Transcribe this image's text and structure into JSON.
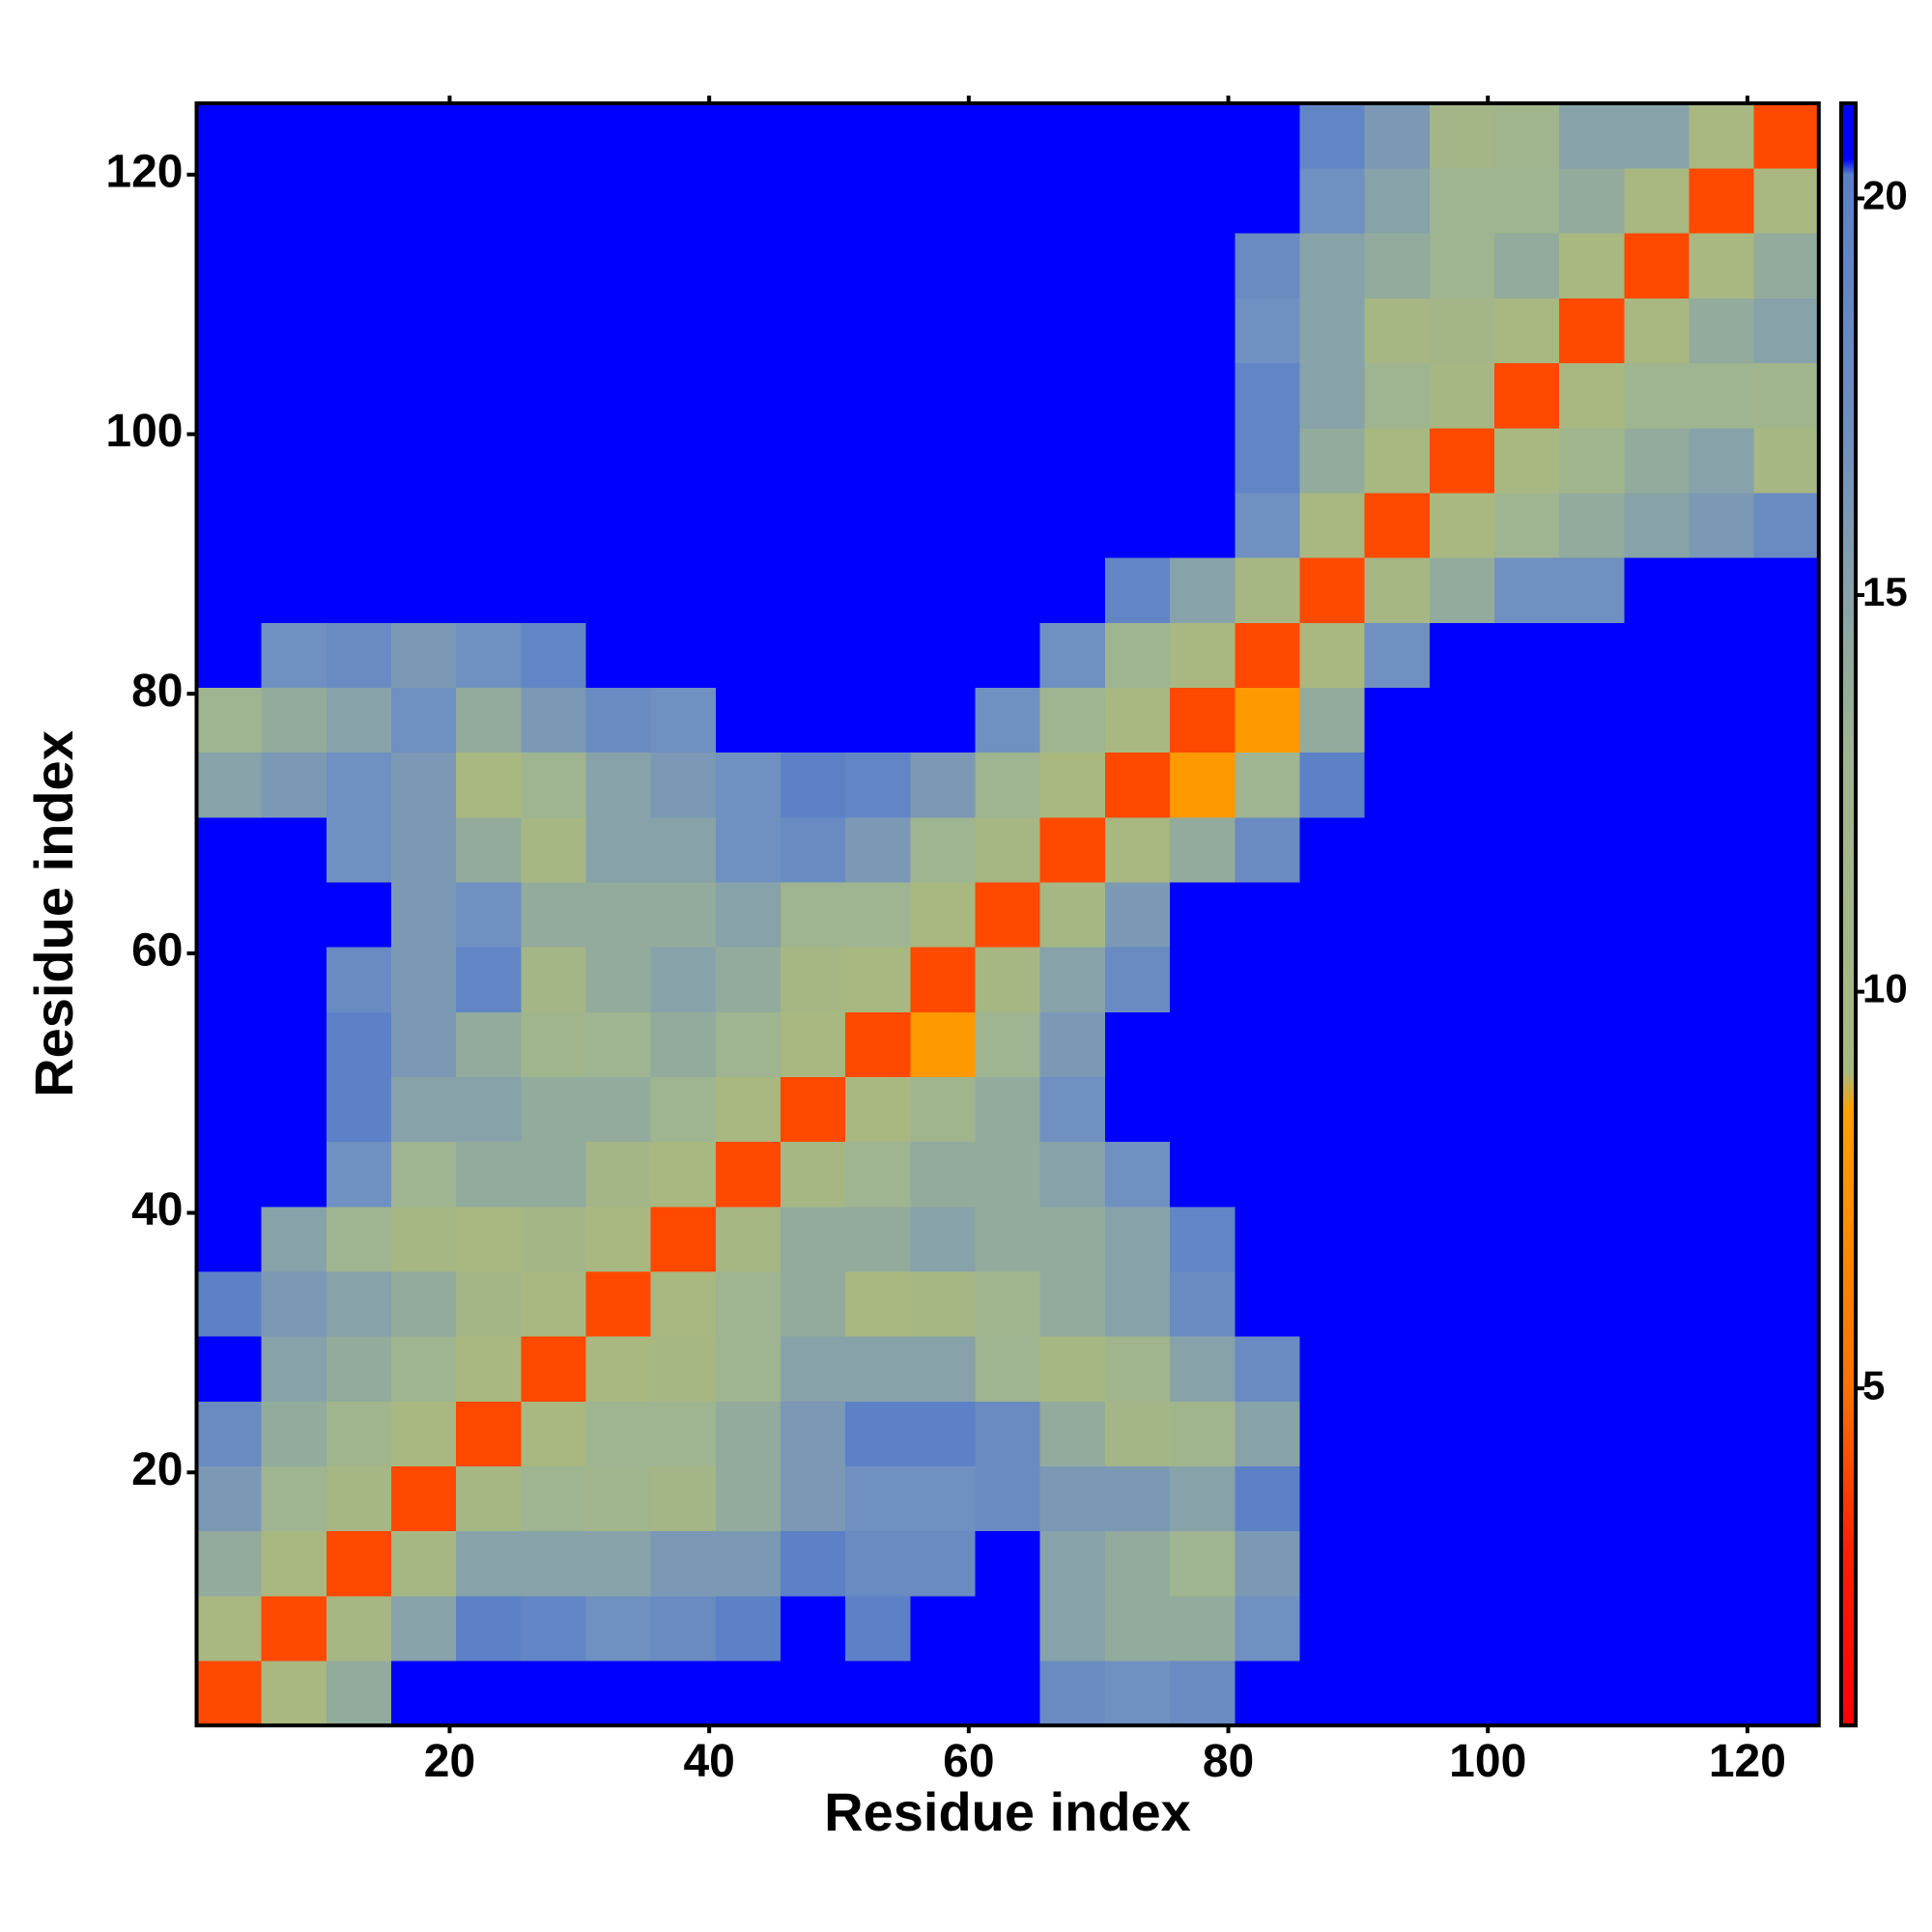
{
  "chart_data": {
    "type": "heatmap",
    "xlabel": "Residue index",
    "ylabel": "Residue index",
    "xbins": [
      0.5,
      5.5,
      10.5,
      15.5,
      20.5,
      25.5,
      30.5,
      35.5,
      40.5,
      45.5,
      50.5,
      55.5,
      60.5,
      65.5,
      70.5,
      75.5,
      80.5,
      85.5,
      90.5,
      95.5,
      100.5,
      105.5,
      110.5,
      115.5,
      120.5,
      125.5
    ],
    "ybins": [
      0.5,
      5.5,
      10.5,
      15.5,
      20.5,
      25.5,
      30.5,
      35.5,
      40.5,
      45.5,
      50.5,
      55.5,
      60.5,
      65.5,
      70.5,
      75.5,
      80.5,
      85.5,
      90.5,
      95.5,
      100.5,
      105.5,
      110.5,
      115.5,
      120.5,
      125.5
    ],
    "z": [
      [
        4,
        9,
        14,
        21,
        21,
        21,
        21,
        21,
        21,
        21,
        21,
        21,
        21,
        18,
        17,
        18,
        21,
        21,
        21,
        21,
        21,
        21,
        21,
        21,
        21
      ],
      [
        9,
        4,
        10,
        15,
        20,
        19,
        17,
        18,
        20,
        21,
        20,
        21,
        21,
        15,
        14,
        14,
        17,
        21,
        21,
        21,
        21,
        21,
        21,
        21,
        21
      ],
      [
        14,
        9,
        4,
        10,
        15,
        15,
        15,
        16,
        16,
        20,
        18,
        18,
        21,
        15,
        14,
        13,
        16,
        21,
        21,
        21,
        21,
        21,
        21,
        21,
        21
      ],
      [
        16,
        13,
        10,
        4,
        10,
        13,
        12,
        11,
        14,
        16,
        17,
        17,
        18,
        16,
        16,
        15,
        20,
        21,
        21,
        21,
        21,
        21,
        21,
        21,
        21
      ],
      [
        18,
        14,
        12,
        9,
        4,
        9,
        13,
        13,
        14,
        16,
        20,
        20,
        18,
        14,
        11,
        12,
        15,
        21,
        21,
        21,
        21,
        21,
        21,
        21,
        21
      ],
      [
        21,
        15,
        14,
        13,
        9,
        4,
        9,
        10,
        13,
        15,
        15,
        15,
        13,
        10,
        12,
        15,
        18,
        21,
        21,
        21,
        21,
        21,
        21,
        21,
        21
      ],
      [
        20,
        16,
        15,
        14,
        11,
        9,
        4,
        9,
        13,
        14,
        9,
        10,
        12,
        14,
        15,
        18,
        21,
        21,
        21,
        21,
        21,
        21,
        21,
        21,
        21
      ],
      [
        21,
        15,
        13,
        10,
        9,
        11,
        9,
        4,
        10,
        14,
        14,
        15,
        14,
        14,
        15,
        19,
        21,
        21,
        21,
        21,
        21,
        21,
        21,
        21,
        21
      ],
      [
        21,
        21,
        17,
        13,
        14,
        14,
        11,
        9,
        4,
        10,
        13,
        14,
        14,
        15,
        17,
        21,
        21,
        21,
        21,
        21,
        21,
        21,
        21,
        21,
        21
      ],
      [
        21,
        21,
        20,
        15,
        15,
        14,
        14,
        13,
        9,
        4,
        9,
        12,
        14,
        17,
        21,
        21,
        21,
        21,
        21,
        21,
        21,
        21,
        21,
        21,
        21
      ],
      [
        21,
        21,
        20,
        16,
        14,
        12,
        13,
        14,
        13,
        9,
        4,
        8,
        13,
        16,
        21,
        21,
        21,
        21,
        21,
        21,
        21,
        21,
        21,
        21,
        21
      ],
      [
        21,
        21,
        18,
        16,
        19,
        11,
        14,
        15,
        14,
        10,
        9,
        4,
        10,
        15,
        18,
        21,
        21,
        21,
        21,
        21,
        21,
        21,
        21,
        21,
        21
      ],
      [
        21,
        21,
        21,
        16,
        17,
        14,
        14,
        14,
        15,
        13,
        13,
        9,
        4,
        10,
        16,
        21,
        21,
        21,
        21,
        21,
        21,
        21,
        21,
        21,
        21
      ],
      [
        21,
        21,
        17,
        16,
        14,
        10,
        15,
        15,
        17,
        18,
        16,
        13,
        10,
        4,
        9,
        14,
        18,
        21,
        21,
        21,
        21,
        21,
        21,
        21,
        21
      ],
      [
        15,
        16,
        17,
        16,
        9,
        13,
        15,
        16,
        17,
        20,
        19,
        16,
        13,
        9,
        4,
        8,
        13,
        20,
        21,
        21,
        21,
        21,
        21,
        21,
        21
      ],
      [
        13,
        14,
        15,
        17,
        14,
        16,
        18,
        17,
        21,
        21,
        21,
        21,
        17,
        13,
        9,
        4,
        8,
        14,
        21,
        21,
        21,
        21,
        21,
        21,
        21
      ],
      [
        21,
        17,
        18,
        16,
        17,
        19,
        21,
        21,
        21,
        21,
        21,
        21,
        21,
        17,
        13,
        9,
        4,
        9,
        17,
        21,
        21,
        21,
        21,
        21,
        21
      ],
      [
        21,
        21,
        21,
        21,
        21,
        21,
        21,
        21,
        21,
        21,
        21,
        21,
        21,
        21,
        19,
        15,
        10,
        4,
        10,
        14,
        17,
        17,
        21,
        21,
        21
      ],
      [
        21,
        21,
        21,
        21,
        21,
        21,
        21,
        21,
        21,
        21,
        21,
        21,
        21,
        21,
        21,
        21,
        17,
        9,
        4,
        9,
        13,
        14,
        15,
        16,
        18
      ],
      [
        21,
        21,
        21,
        21,
        21,
        21,
        21,
        21,
        21,
        21,
        21,
        21,
        21,
        21,
        21,
        21,
        19,
        14,
        9,
        4,
        9,
        12,
        14,
        15,
        10
      ],
      [
        21,
        21,
        21,
        21,
        21,
        21,
        21,
        21,
        21,
        21,
        21,
        21,
        21,
        21,
        21,
        21,
        19,
        15,
        13,
        10,
        4,
        9,
        13,
        13,
        12
      ],
      [
        21,
        21,
        21,
        21,
        21,
        21,
        21,
        21,
        21,
        21,
        21,
        21,
        21,
        21,
        21,
        21,
        17,
        15,
        10,
        11,
        9,
        4,
        9,
        14,
        15
      ],
      [
        21,
        21,
        21,
        21,
        21,
        21,
        21,
        21,
        21,
        21,
        21,
        21,
        21,
        21,
        21,
        21,
        18,
        15,
        14,
        13,
        14,
        9,
        4,
        9,
        14
      ],
      [
        21,
        21,
        21,
        21,
        21,
        21,
        21,
        21,
        21,
        21,
        21,
        21,
        21,
        21,
        21,
        21,
        21,
        17,
        15,
        13,
        13,
        14,
        9,
        4,
        9
      ],
      [
        21,
        21,
        21,
        21,
        21,
        21,
        21,
        21,
        21,
        21,
        21,
        21,
        21,
        21,
        21,
        21,
        21,
        19,
        16,
        11,
        12,
        15,
        15,
        9,
        4
      ]
    ],
    "xlim": [
      0.5,
      125.5
    ],
    "ylim": [
      0.5,
      125.5
    ],
    "xticks": [
      20,
      40,
      60,
      80,
      100,
      120
    ],
    "yticks": [
      20,
      40,
      60,
      80,
      100,
      120
    ],
    "clim": [
      0.75,
      21.2
    ],
    "cticks": [
      5,
      10,
      15,
      20
    ],
    "colorscale": [
      [
        0.75,
        "#ff0000"
      ],
      [
        3,
        "#ff2000"
      ],
      [
        5,
        "#ff7000"
      ],
      [
        8.5,
        "#ffa000"
      ],
      [
        9,
        "#a8b880"
      ],
      [
        13,
        "#9fb490"
      ],
      [
        17,
        "#6f90c0"
      ],
      [
        20.3,
        "#5a80c8"
      ],
      [
        20.5,
        "#0000ff"
      ],
      [
        21.2,
        "#0000ff"
      ]
    ]
  }
}
